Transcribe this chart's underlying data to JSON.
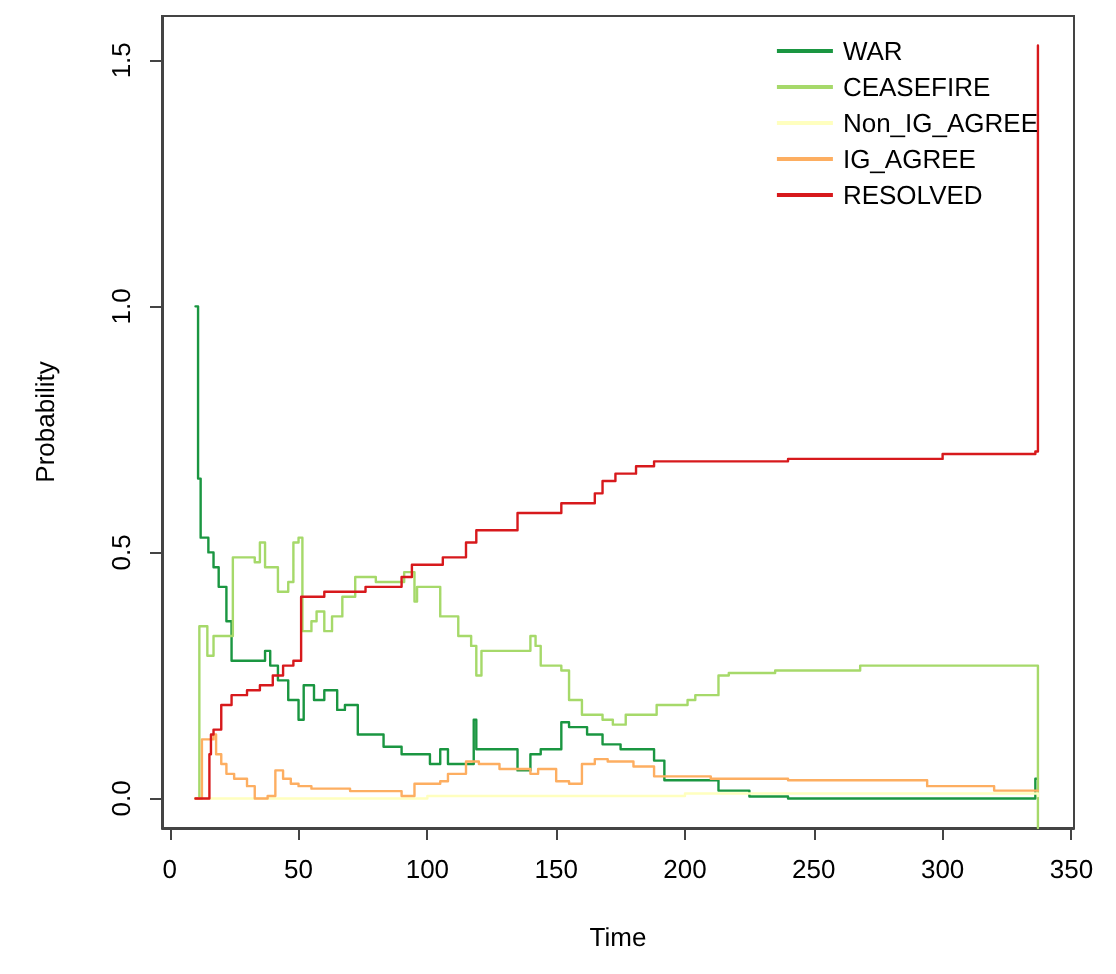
{
  "chart_data": {
    "type": "step",
    "xlabel": "Time",
    "ylabel": "Probability",
    "xlim": [
      -3,
      351
    ],
    "ylim": [
      -0.06,
      1.59
    ],
    "xticks": [
      0,
      50,
      100,
      150,
      200,
      250,
      300,
      350
    ],
    "yticks": [
      {
        "value": 0,
        "label": "0.0"
      },
      {
        "value": 0.5,
        "label": "0.5"
      },
      {
        "value": 1,
        "label": "1.0"
      },
      {
        "value": 1.5,
        "label": "1.5"
      }
    ],
    "grid": false,
    "legend": "top right",
    "marker": "none",
    "line_style": "solid",
    "series": [
      {
        "name": "WAR",
        "color": "#1a9641",
        "x": [
          10,
          11,
          12,
          15,
          17,
          19,
          22,
          24,
          37,
          39,
          42,
          46,
          50,
          52,
          56,
          60,
          65,
          68,
          73,
          83,
          90,
          101,
          105,
          108,
          118,
          119,
          135,
          140,
          144,
          152,
          155,
          162,
          168,
          175,
          188,
          192,
          213,
          225,
          240,
          260,
          336,
          337
        ],
        "values": [
          1.0,
          0.65,
          0.53,
          0.5,
          0.47,
          0.43,
          0.36,
          0.28,
          0.3,
          0.27,
          0.24,
          0.2,
          0.16,
          0.23,
          0.2,
          0.22,
          0.18,
          0.19,
          0.13,
          0.105,
          0.09,
          0.07,
          0.1,
          0.07,
          0.16,
          0.1,
          0.057,
          0.09,
          0.1,
          0.155,
          0.145,
          0.13,
          0.11,
          0.1,
          0.077,
          0.037,
          0.016,
          0.004,
          0.0,
          0.0,
          0.04,
          0.04
        ]
      },
      {
        "name": "CEASEFIRE",
        "color": "#a6d96a",
        "x": [
          10,
          11.5,
          14.6,
          17,
          24.5,
          33,
          35,
          37,
          42,
          46,
          48,
          50,
          51.5,
          55,
          57,
          60,
          63,
          67,
          72,
          80,
          91,
          95,
          96,
          105,
          112,
          117,
          119,
          121,
          140,
          142,
          144,
          152,
          155,
          160,
          168,
          172,
          177,
          189,
          201,
          204,
          213,
          217,
          235,
          268,
          336,
          337
        ],
        "values": [
          0,
          0.35,
          0.29,
          0.33,
          0.49,
          0.48,
          0.52,
          0.47,
          0.42,
          0.44,
          0.52,
          0.53,
          0.34,
          0.36,
          0.38,
          0.34,
          0.37,
          0.41,
          0.45,
          0.44,
          0.46,
          0.4,
          0.43,
          0.37,
          0.33,
          0.31,
          0.25,
          0.3,
          0.33,
          0.31,
          0.27,
          0.26,
          0.2,
          0.17,
          0.16,
          0.15,
          0.17,
          0.19,
          0.2,
          0.21,
          0.25,
          0.255,
          0.26,
          0.27,
          0.27,
          -0.06
        ]
      },
      {
        "name": "Non_IG_AGREE",
        "color": "#ffffbf",
        "x": [
          10,
          100,
          200,
          337
        ],
        "values": [
          0,
          0.005,
          0.01,
          0.005
        ]
      },
      {
        "name": "IG_AGREE",
        "color": "#fdae61",
        "x": [
          10,
          12.5,
          17,
          18,
          20,
          22,
          25,
          30,
          33,
          38,
          41,
          44,
          47,
          50,
          55,
          70,
          90,
          95,
          105,
          108,
          115,
          120,
          128,
          140,
          143,
          150,
          155,
          160,
          165,
          170,
          180,
          188,
          210,
          240,
          294,
          320,
          337
        ],
        "values": [
          0,
          0.12,
          0.13,
          0.09,
          0.07,
          0.05,
          0.04,
          0.025,
          0,
          0.005,
          0.057,
          0.04,
          0.03,
          0.025,
          0.02,
          0.015,
          0.005,
          0.03,
          0.035,
          0.05,
          0.075,
          0.07,
          0.06,
          0.05,
          0.06,
          0.035,
          0.03,
          0.07,
          0.08,
          0.075,
          0.065,
          0.045,
          0.04,
          0.037,
          0.025,
          0.016,
          0.016
        ]
      },
      {
        "name": "RESOLVED",
        "color": "#d7191c",
        "x": [
          10,
          15.4,
          16,
          17,
          20,
          24,
          30,
          35,
          40,
          44,
          48,
          51,
          60,
          76,
          90,
          94,
          106,
          115,
          119,
          135,
          152,
          165,
          168,
          173,
          181,
          188,
          240,
          300,
          336,
          337
        ],
        "values": [
          0,
          0.09,
          0.13,
          0.14,
          0.19,
          0.21,
          0.22,
          0.23,
          0.25,
          0.27,
          0.28,
          0.41,
          0.42,
          0.43,
          0.45,
          0.475,
          0.49,
          0.52,
          0.545,
          0.58,
          0.6,
          0.62,
          0.645,
          0.66,
          0.675,
          0.685,
          0.69,
          0.7,
          0.705,
          1.53
        ]
      }
    ]
  }
}
